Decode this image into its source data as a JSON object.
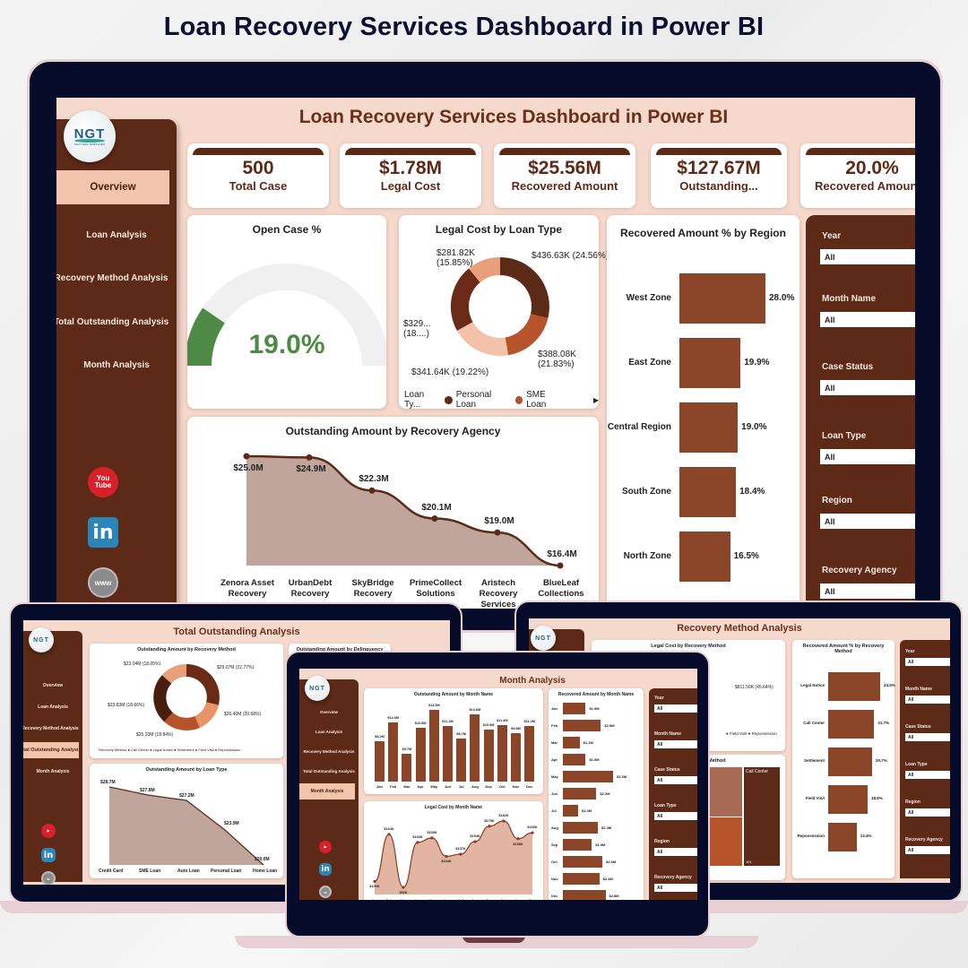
{
  "hero_title": "Loan Recovery Services Dashboard in Power BI",
  "main": {
    "logo": {
      "text": "NGT",
      "sub": "NEXT GEN TEMPLATES"
    },
    "title": "Loan Recovery Services Dashboard in Power BI",
    "nav": [
      {
        "label": "Overview",
        "active": true
      },
      {
        "label": "Loan Analysis"
      },
      {
        "label": "Recovery Method Analysis"
      },
      {
        "label": "Total Outstanding Analysis"
      },
      {
        "label": "Month Analysis"
      }
    ],
    "social": {
      "youtube": "You Tube",
      "linkedin": "in",
      "web": "www"
    },
    "kpis": [
      {
        "value": "500",
        "label": "Total Case"
      },
      {
        "value": "$1.78M",
        "label": "Legal Cost"
      },
      {
        "value": "$25.56M",
        "label": "Recovered Amount"
      },
      {
        "value": "$127.67M",
        "label": "Outstanding..."
      },
      {
        "value": "20.0%",
        "label": "Recovered Amount %"
      }
    ],
    "open_case": {
      "title": "Open Case %",
      "value": "19.0%",
      "percent": 19,
      "color": "#4e8a45"
    },
    "legal_cost_donut": {
      "title": "Legal Cost by Loan Type",
      "legend_label": "Loan Ty...",
      "legend": [
        {
          "name": "Personal Loan",
          "color": "#5c2a16"
        },
        {
          "name": "SME Loan",
          "color": "#b5542a"
        }
      ],
      "slices": [
        {
          "label": "$436.63K (24.56%)",
          "value": 24.56,
          "color": "#5c2a16"
        },
        {
          "label": "$388.08K (21.83%)",
          "value": 21.83,
          "color": "#b5542a"
        },
        {
          "label": "$341.64K (19.22%)",
          "value": 19.22,
          "color": "#f4c2a8"
        },
        {
          "label": "$329... (18....)",
          "value": 18.54,
          "color": "#6b2a16"
        },
        {
          "label": "$281.82K (15.85%)",
          "value": 15.85,
          "color": "#e8a07a"
        }
      ]
    },
    "region_bars": {
      "title": "Recovered Amount % by Region",
      "items": [
        {
          "label": "West Zone",
          "value": 28.0,
          "text": "28.0%"
        },
        {
          "label": "East Zone",
          "value": 19.9,
          "text": "19.9%"
        },
        {
          "label": "Central Region",
          "value": 19.0,
          "text": "19.0%"
        },
        {
          "label": "South Zone",
          "value": 18.4,
          "text": "18.4%"
        },
        {
          "label": "North Zone",
          "value": 16.5,
          "text": "16.5%"
        }
      ]
    },
    "agency_area": {
      "title": "Outstanding Amount by Recovery Agency",
      "points": [
        {
          "label": "Zenora Asset Recovery",
          "value": 25.0,
          "text": "$25.0M"
        },
        {
          "label": "UrbanDebt Recovery",
          "value": 24.9,
          "text": "$24.9M"
        },
        {
          "label": "SkyBridge Recovery",
          "value": 22.3,
          "text": "$22.3M"
        },
        {
          "label": "PrimeCollect Solutions",
          "value": 20.1,
          "text": "$20.1M"
        },
        {
          "label": "Aristech Recovery Services",
          "value": 19.0,
          "text": "$19.0M"
        },
        {
          "label": "BlueLeaf Collections",
          "value": 16.4,
          "text": "$16.4M"
        }
      ]
    },
    "slicers": [
      {
        "label": "Year",
        "value": "All"
      },
      {
        "label": "Month Name",
        "value": "All"
      },
      {
        "label": "Case Status",
        "value": "All"
      },
      {
        "label": "Loan Type",
        "value": "All"
      },
      {
        "label": "Region",
        "value": "All"
      },
      {
        "label": "Recovery Agency",
        "value": "All"
      }
    ]
  },
  "outstanding_page": {
    "title": "Total Outstanding  Analysis",
    "nav": [
      "Overview",
      "Loan Analysis",
      "Recovery Method Analysis",
      "Total Outstanding Analysis",
      "Month Analysis"
    ],
    "method_donut": {
      "title": "Outstanding Amount by Recovery Method",
      "labels": [
        "$23.04M (18.05%)",
        "$29.07M (22.77%)",
        "$26.40M (20.68%)",
        "$25.33M (19.84%)",
        "$23.83M (18.66%)"
      ],
      "legend_title": "Recovery Method",
      "legend": [
        "Call Center",
        "Legal Notice",
        "Settlement",
        "Field Visit",
        "Repossession"
      ]
    },
    "delinquency_title": "Outstanding Amount by Delinquency",
    "loan_type_area": {
      "title": "Outstanding Amount by Loan Type",
      "categories": [
        "Credit Card",
        "SME Loan",
        "Auto Loan",
        "Personal Loan",
        "Home Loan"
      ],
      "labels": [
        "$28.7M",
        "$27.8M",
        "$27.2M",
        "$23.9M",
        "$20.0M"
      ],
      "values": [
        28.7,
        27.8,
        27.2,
        23.9,
        20.0
      ]
    }
  },
  "method_page": {
    "title": "Recovery Method Analysis",
    "legal_cost_title": "Legal Cost by Recovery Method",
    "legal_cost_label": "$811.50K (45.64%)",
    "legend": [
      "Field Visit",
      "Repossession"
    ],
    "treemap_title": "Method",
    "treemap_label": "Call Center",
    "treemap_value": "101",
    "pct_bars": {
      "title": "Recovered Amount % by Recovery Method",
      "items": [
        {
          "label": "Legal Notice",
          "value": 24.5,
          "text": "24.5%"
        },
        {
          "label": "Call Center",
          "value": 21.7,
          "text": "21.7%"
        },
        {
          "label": "Settlement",
          "value": 20.7,
          "text": "20.7%"
        },
        {
          "label": "Field Visit",
          "value": 18.6,
          "text": "18.6%"
        },
        {
          "label": "Repossession",
          "value": 13.4,
          "text": "13.4%"
        }
      ]
    },
    "slicers": [
      "Year",
      "Month Name",
      "Case Status",
      "Loan Type",
      "Region",
      "Recovery Agency"
    ]
  },
  "month_page": {
    "title": "Month Analysis",
    "nav": [
      "Overview",
      "Loan Analysis",
      "Recovery Method Analysis",
      "Total Outstanding Analysis",
      "Month Analysis"
    ],
    "outstanding_bars": {
      "title": "Outstanding Amount by Month Name",
      "months": [
        "Jan",
        "Feb",
        "Mar",
        "Apr",
        "May",
        "Jun",
        "Jul",
        "Aug",
        "Sep",
        "Oct",
        "Nov",
        "Dec"
      ],
      "values": [
        8.2,
        12.0,
        5.7,
        10.8,
        14.5,
        11.2,
        8.7,
        13.6,
        10.5,
        11.4,
        9.8,
        11.2
      ],
      "labels": [
        "$8.2M",
        "$12.0M",
        "$5.7M",
        "$10.8M",
        "$14.5M",
        "$11.2M",
        "$8.7M",
        "$13.6M",
        "$10.5M",
        "$11.4M",
        "$9.8M",
        "$11.2M"
      ]
    },
    "legal_cost_area": {
      "title": "Legal Cost by Month Name",
      "months": [
        "Jan",
        "Feb",
        "Mar",
        "Apr",
        "May",
        "Jun",
        "Jul",
        "Aug",
        "Sep",
        "Oct",
        "Nov",
        "Dec"
      ],
      "values": [
        100,
        164,
        92,
        153,
        159,
        134,
        137,
        154,
        175,
        182,
        158,
        166
      ],
      "labels": [
        "$100K",
        "$164K",
        "$92K",
        "$153K",
        "$159K",
        "$134K",
        "$137K",
        "$154K",
        "$175K",
        "$182K",
        "$158K",
        "$166K"
      ]
    },
    "recovered_bars": {
      "title": "Recovered Amount by Month Name",
      "months": [
        "Jan",
        "Feb",
        "Mar",
        "Apr",
        "May",
        "Jun",
        "Jul",
        "Aug",
        "Sep",
        "Oct",
        "Nov",
        "Dec"
      ],
      "values": [
        1.5,
        2.5,
        1.1,
        1.5,
        3.3,
        2.2,
        1.0,
        2.3,
        1.9,
        2.6,
        2.4,
        2.8
      ],
      "labels": [
        "$1.5M",
        "$2.5M",
        "$1.1M",
        "$1.5M",
        "$3.3M",
        "$2.2M",
        "$1.0M",
        "$2.3M",
        "$1.9M",
        "$2.6M",
        "$2.4M",
        "$2.8M"
      ]
    },
    "slicers": [
      "Year",
      "Month Name",
      "Case Status",
      "Loan Type",
      "Region",
      "Recovery Agency"
    ],
    "slicer_value": "All"
  }
}
